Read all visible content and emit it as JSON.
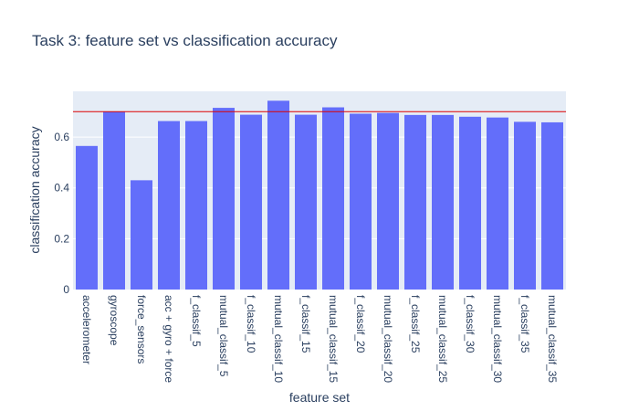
{
  "chart_data": {
    "type": "bar",
    "title": "Task 3: feature set vs classification accuracy",
    "xlabel": "feature set",
    "ylabel": "classification accuracy",
    "categories": [
      "accelerometer",
      "gyroscope",
      "force_sensors",
      "acc + gyro + force",
      "f_classif_5",
      "mutual_classif_5",
      "f_classif_10",
      "mutual_classif_10",
      "f_classif_15",
      "mutual_classif_15",
      "f_classif_20",
      "mutual_classif_20",
      "f_classif_25",
      "mutual_classif_25",
      "f_classif_30",
      "mutual_classif_30",
      "f_classif_35",
      "mutual_classif_35"
    ],
    "values": [
      0.565,
      0.7,
      0.43,
      0.663,
      0.663,
      0.715,
      0.688,
      0.743,
      0.688,
      0.717,
      0.692,
      0.695,
      0.687,
      0.687,
      0.68,
      0.677,
      0.66,
      0.658
    ],
    "ylim": [
      0,
      0.78
    ],
    "yticks": [
      0,
      0.2,
      0.4,
      0.6
    ],
    "ytick_labels": [
      "0",
      "0.2",
      "0.4",
      "0.6"
    ],
    "reference_line": 0.7,
    "colors": {
      "bar": "#636efa",
      "plot_bg": "#e5ecf6",
      "reference_line": "#dd0000",
      "grid": "#ffffff",
      "text": "#2a3f5f"
    },
    "grid": true
  }
}
